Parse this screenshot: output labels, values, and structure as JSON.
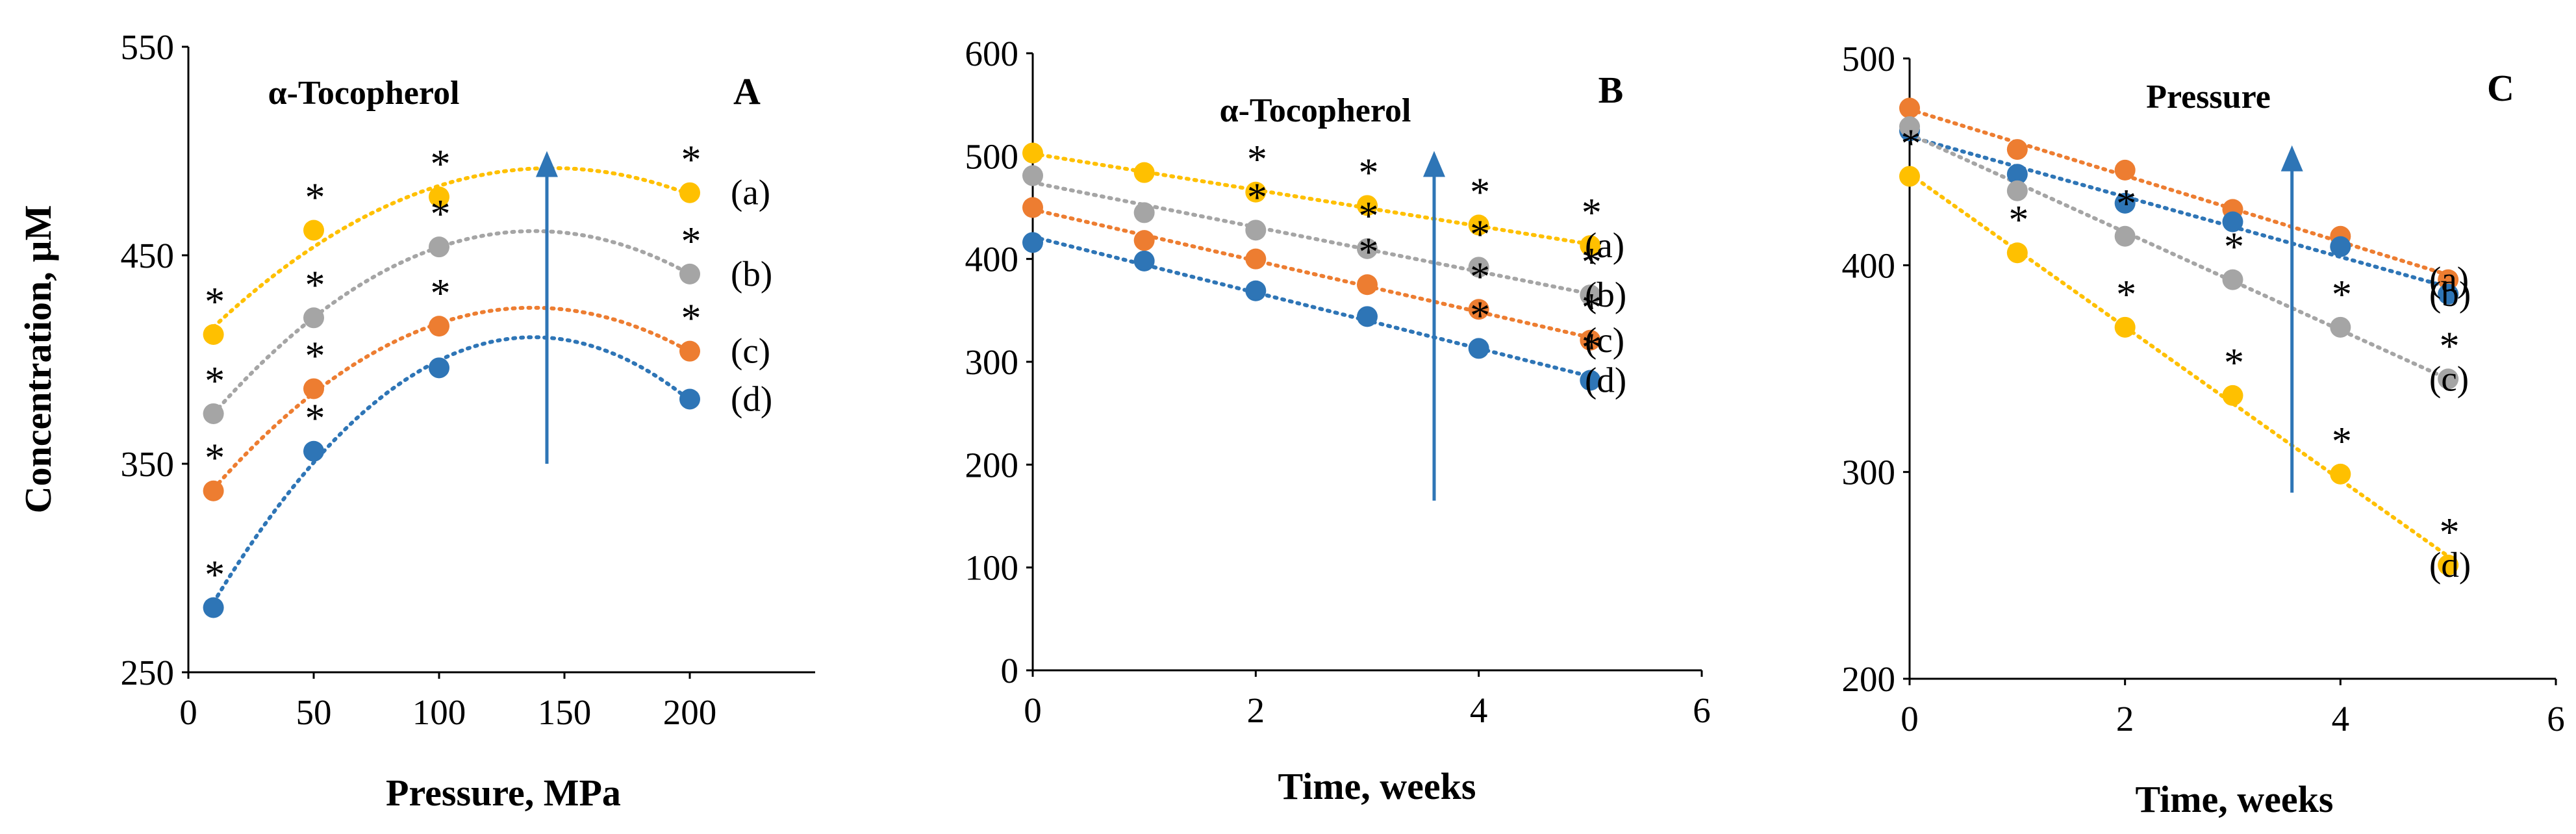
{
  "colors": {
    "a": "#FFC000",
    "b": "#A5A5A5",
    "c": "#ED7D31",
    "d": "#2E75B6",
    "arrow": "#2E75B6"
  },
  "chart_data": [
    {
      "type": "scatter",
      "panel": "A",
      "annotation": "α-Tocopherol",
      "xlabel": "Pressure, MPa",
      "ylabel": "Concentration, µM",
      "xlim": [
        0,
        250
      ],
      "ylim": [
        250,
        550
      ],
      "xticks": [
        0,
        50,
        100,
        150,
        200
      ],
      "yticks": [
        250,
        350,
        450,
        550
      ],
      "arrow": {
        "x": 143,
        "y_from": 350,
        "y_to": 500
      },
      "series": [
        {
          "name": "(a)",
          "color_key": "a",
          "x": [
            10,
            50,
            100,
            200
          ],
          "y": [
            412,
            462,
            478,
            480
          ],
          "significant": [
            true,
            true,
            true,
            true
          ]
        },
        {
          "name": "(b)",
          "color_key": "b",
          "x": [
            10,
            50,
            100,
            200
          ],
          "y": [
            374,
            420,
            454,
            441
          ],
          "significant": [
            true,
            true,
            true,
            true
          ]
        },
        {
          "name": "(c)",
          "color_key": "c",
          "x": [
            10,
            50,
            100,
            200
          ],
          "y": [
            337,
            386,
            416,
            404
          ],
          "significant": [
            true,
            true,
            true,
            true
          ]
        },
        {
          "name": "(d)",
          "color_key": "d",
          "x": [
            10,
            50,
            100,
            200
          ],
          "y": [
            281,
            356,
            396,
            381
          ],
          "significant": [
            true,
            true,
            false,
            false
          ]
        }
      ]
    },
    {
      "type": "scatter",
      "panel": "B",
      "annotation": "α-Tocopherol",
      "xlabel": "Time, weeks",
      "ylabel": "",
      "xlim": [
        0,
        6
      ],
      "ylim": [
        0,
        600
      ],
      "xticks": [
        0,
        2,
        4,
        6
      ],
      "yticks": [
        0,
        100,
        200,
        300,
        400,
        500,
        600
      ],
      "arrow": {
        "x": 3.6,
        "y_from": 165,
        "y_to": 505
      },
      "series": [
        {
          "name": "(a)",
          "color_key": "a",
          "x": [
            0,
            1,
            2,
            3,
            4,
            5
          ],
          "y": [
            503,
            484,
            465,
            452,
            433,
            413
          ],
          "significant": [
            false,
            false,
            true,
            true,
            true,
            true
          ]
        },
        {
          "name": "(b)",
          "color_key": "b",
          "x": [
            0,
            1,
            2,
            3,
            4,
            5
          ],
          "y": [
            481,
            445,
            428,
            410,
            392,
            365
          ],
          "significant": [
            false,
            false,
            true,
            true,
            true,
            true
          ]
        },
        {
          "name": "(c)",
          "color_key": "c",
          "x": [
            0,
            1,
            2,
            3,
            4,
            5
          ],
          "y": [
            450,
            418,
            400,
            375,
            351,
            321
          ],
          "significant": [
            false,
            false,
            false,
            true,
            true,
            true
          ]
        },
        {
          "name": "(d)",
          "color_key": "d",
          "x": [
            0,
            1,
            2,
            3,
            4,
            5
          ],
          "y": [
            416,
            398,
            369,
            344,
            313,
            282
          ],
          "significant": [
            false,
            false,
            false,
            false,
            true,
            true
          ]
        }
      ]
    },
    {
      "type": "scatter",
      "panel": "C",
      "annotation": "Pressure",
      "xlabel": "Time, weeks",
      "ylabel": "",
      "xlim": [
        0,
        6
      ],
      "ylim": [
        200,
        500
      ],
      "xticks": [
        0,
        2,
        4,
        6
      ],
      "yticks": [
        200,
        300,
        400,
        500
      ],
      "arrow": {
        "x": 3.55,
        "y_from": 290,
        "y_to": 458
      },
      "series": [
        {
          "name": "(a)",
          "color_key": "c",
          "x": [
            0,
            1,
            2,
            3,
            4,
            5
          ],
          "y": [
            476,
            456,
            446,
            427,
            414,
            393
          ],
          "significant": [
            false,
            false,
            false,
            false,
            false,
            false
          ]
        },
        {
          "name": "(b)",
          "color_key": "d",
          "x": [
            0,
            1,
            2,
            3,
            4,
            5
          ],
          "y": [
            465,
            444,
            430,
            421,
            409,
            386
          ],
          "significant": [
            false,
            false,
            false,
            false,
            false,
            false
          ]
        },
        {
          "name": "(c)",
          "color_key": "b",
          "x": [
            0,
            1,
            2,
            3,
            4,
            5
          ],
          "y": [
            467,
            436,
            414,
            393,
            370,
            345
          ],
          "significant": [
            false,
            false,
            true,
            true,
            true,
            true
          ]
        },
        {
          "name": "(d)",
          "color_key": "a",
          "x": [
            0,
            1,
            2,
            3,
            4,
            5
          ],
          "y": [
            443,
            406,
            370,
            337,
            299,
            255
          ],
          "significant": [
            true,
            true,
            true,
            true,
            true,
            true
          ]
        }
      ]
    }
  ]
}
